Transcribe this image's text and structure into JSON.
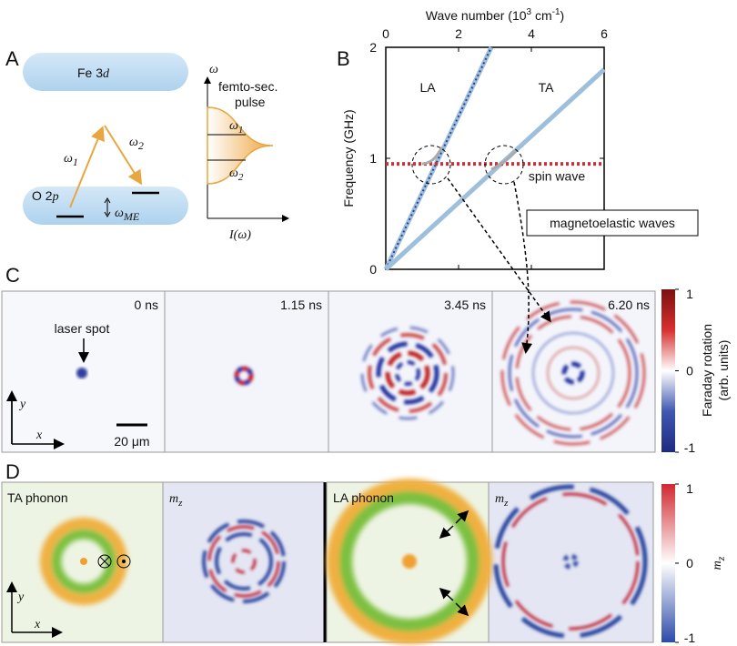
{
  "labels": {
    "a": "A",
    "b": "B",
    "c": "C",
    "d": "D"
  },
  "panel_a": {
    "fe": [
      "Fe 3",
      "d"
    ],
    "o": [
      "O 2",
      "p"
    ],
    "w1": [
      "ω",
      "1"
    ],
    "w2": [
      "ω",
      "2"
    ],
    "wme": [
      "ω",
      "ME"
    ],
    "axis_y": "ω",
    "pulse": [
      "femto-sec.",
      "pulse"
    ],
    "axis_x": "I(ω)"
  },
  "chart_data": {
    "type": "line",
    "xlabel": [
      "Wave number (10",
      "3",
      " cm",
      "-1",
      ")"
    ],
    "ylabel": "Frequency (GHz)",
    "xlim": [
      0,
      6
    ],
    "xticks": [
      0,
      2,
      4,
      6
    ],
    "ylim": [
      0,
      2
    ],
    "yticks": [
      0,
      1,
      2
    ],
    "series": [
      {
        "name": "LA",
        "color": "#9dbfdc",
        "dash_color": "#2d3f8f",
        "x": [
          0,
          2.9
        ],
        "values": [
          0,
          2
        ]
      },
      {
        "name": "TA",
        "color": "#9dbfdc",
        "x": [
          0,
          6
        ],
        "values": [
          0,
          1.8
        ]
      },
      {
        "name": "spin wave",
        "color": "#c8323a",
        "dotted": true,
        "x": [
          0,
          6
        ],
        "values": [
          0.95,
          0.95
        ]
      }
    ],
    "annotation": "magnetoelastic waves"
  },
  "panel_c": {
    "times": [
      "0 ns",
      "1.15 ns",
      "3.45 ns",
      "6.20 ns"
    ],
    "laser_spot": "laser spot",
    "scale": "20 μm",
    "axis_x": "x",
    "axis_y": "y",
    "colorbar": {
      "label": [
        "Faraday rotation",
        "(arb. units)"
      ],
      "ticks": [
        1,
        0,
        -1
      ]
    }
  },
  "panel_d": {
    "ta": "TA phonon",
    "la": "LA phonon",
    "mz": [
      "m",
      "z"
    ],
    "axis_x": "x",
    "axis_y": "y",
    "colorbar": {
      "label": [
        "m",
        "z"
      ],
      "ticks": [
        1,
        0,
        -1
      ]
    }
  }
}
